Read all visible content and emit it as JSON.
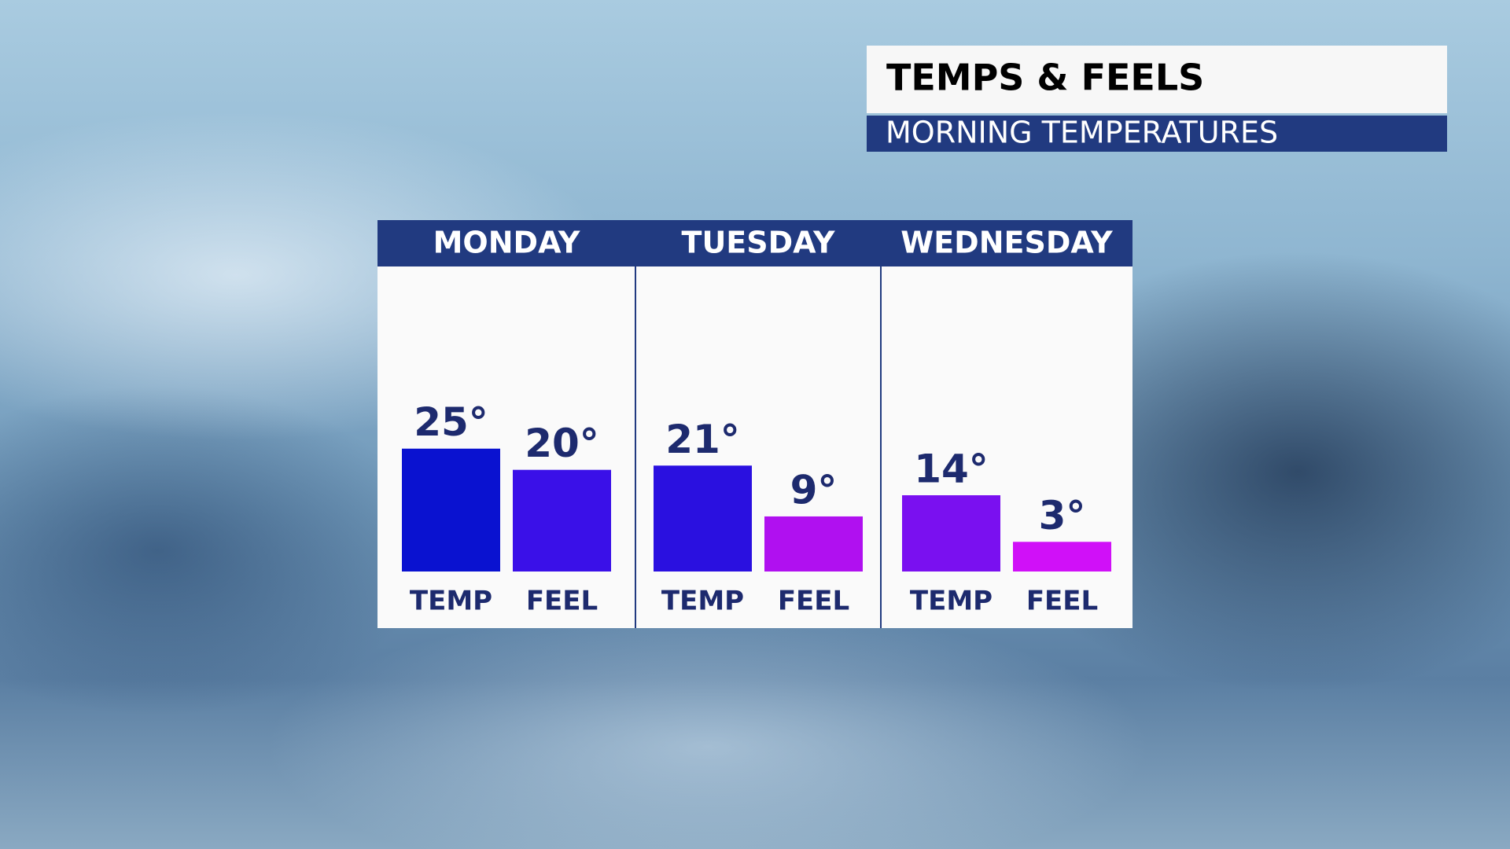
{
  "chart_data": {
    "type": "bar",
    "title": "TEMPS & FEELS",
    "subtitle": "MORNING TEMPERATURES",
    "categories": [
      "MONDAY",
      "TUESDAY",
      "WEDNESDAY"
    ],
    "series": [
      {
        "name": "TEMP",
        "values": [
          25,
          21,
          14
        ],
        "value_labels": [
          "25°",
          "21°",
          "14°"
        ],
        "colors": [
          "#0a12d0",
          "#2a10e0",
          "#7a10f0"
        ]
      },
      {
        "name": "FEEL",
        "values": [
          20,
          9,
          3
        ],
        "value_labels": [
          "20°",
          "9°",
          "3°"
        ],
        "colors": [
          "#3a10e8",
          "#b010f0",
          "#d010f8"
        ]
      }
    ],
    "ylim": [
      -4,
      68
    ],
    "grid": false
  }
}
